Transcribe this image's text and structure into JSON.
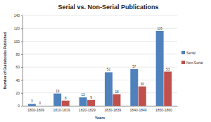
{
  "chart_data": {
    "type": "bar",
    "title": "Serial vs. Non-Serial Publications",
    "x_label": "Years",
    "y_label": "Number of Guidebooks Published",
    "categories": [
      "1800-1809",
      "1810-1819",
      "1820-1829",
      "1830-1839",
      "1840-1849",
      "1850-1860"
    ],
    "series": [
      {
        "name": "Serial",
        "color": "#4f81bd",
        "values": [
          3,
          19,
          13,
          52,
          57,
          116
        ]
      },
      {
        "name": "Non-Serial",
        "color": "#c0504d",
        "values": [
          0,
          8,
          9,
          18,
          30,
          53
        ]
      }
    ],
    "ylim": [
      0,
      140
    ],
    "yticks": [
      0,
      20,
      40,
      60,
      80,
      100,
      120,
      140
    ],
    "grid": true,
    "legend": "right",
    "data_labels": true
  }
}
